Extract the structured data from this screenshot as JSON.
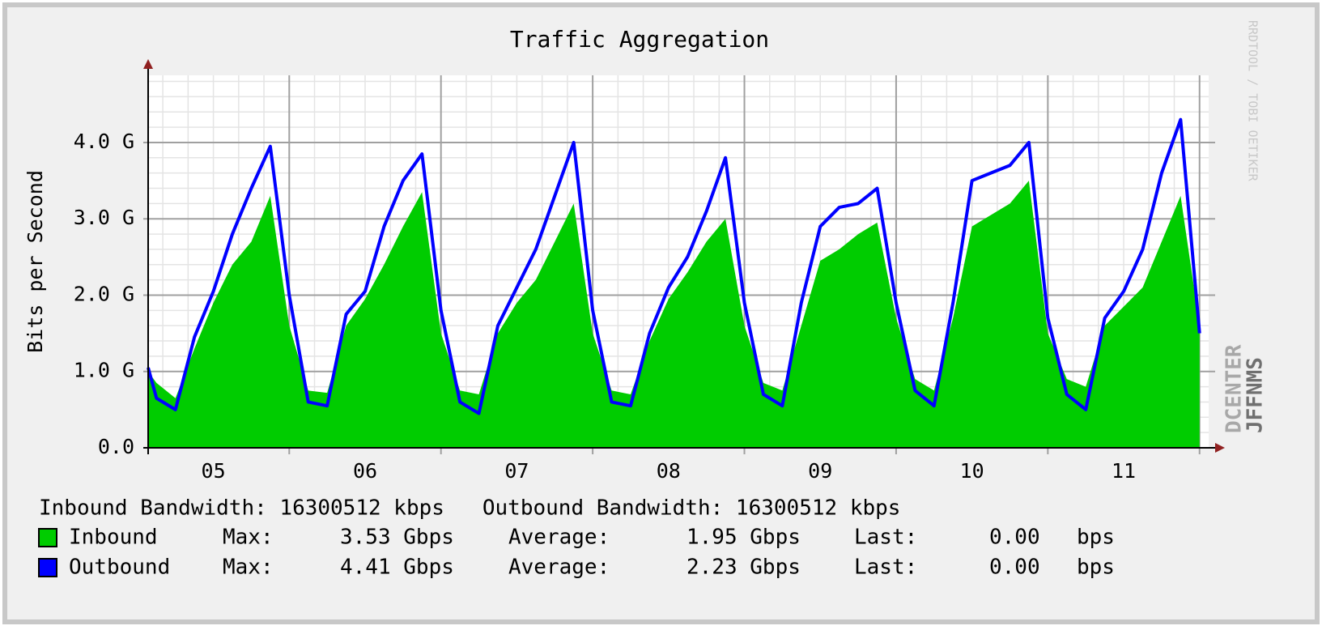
{
  "chart_data": {
    "type": "area",
    "title": "Traffic Aggregation",
    "y_label": "Bits per Second",
    "watermark": "RRDTOOL / TOBI OETIKER",
    "logo": [
      "DCENTER",
      "JFFNMS"
    ],
    "xlim": [
      5.07,
      12.06
    ],
    "xticks": [
      {
        "value": 5.5,
        "label": "05"
      },
      {
        "value": 6.5,
        "label": "06"
      },
      {
        "value": 7.5,
        "label": "07"
      },
      {
        "value": 8.5,
        "label": "08"
      },
      {
        "value": 9.5,
        "label": "09"
      },
      {
        "value": 10.5,
        "label": "10"
      },
      {
        "value": 11.5,
        "label": "11"
      }
    ],
    "xgrid": [
      6,
      7,
      8,
      9,
      10,
      11,
      12
    ],
    "ylim": [
      0,
      4.88
    ],
    "yticks": [
      {
        "value": 0,
        "label": "0.0"
      },
      {
        "value": 1,
        "label": "1.0 G"
      },
      {
        "value": 2,
        "label": "2.0 G"
      },
      {
        "value": 3,
        "label": "3.0 G"
      },
      {
        "value": 4,
        "label": "4.0 G"
      }
    ],
    "grid": true,
    "x": [
      5.07,
      5.125,
      5.25,
      5.375,
      5.5,
      5.625,
      5.75,
      5.875,
      6.0,
      6.125,
      6.25,
      6.375,
      6.5,
      6.625,
      6.75,
      6.875,
      7.0,
      7.125,
      7.25,
      7.375,
      7.5,
      7.625,
      7.75,
      7.875,
      8.0,
      8.125,
      8.25,
      8.375,
      8.5,
      8.625,
      8.75,
      8.875,
      9.0,
      9.125,
      9.25,
      9.375,
      9.5,
      9.625,
      9.75,
      9.875,
      10.0,
      10.125,
      10.25,
      10.375,
      10.5,
      10.625,
      10.75,
      10.875,
      11.0,
      11.125,
      11.25,
      11.375,
      11.5,
      11.625,
      11.75,
      11.875,
      12.0
    ],
    "footer": "Inbound Bandwidth: 16300512 kbps   Outbound Bandwidth: 16300512 kbps",
    "series": [
      {
        "name": "Inbound",
        "color": "#00cc00",
        "style": "area",
        "stats": [
          "Max:",
          "3.53 Gbps",
          "Average:",
          "1.95 Gbps",
          "Last:",
          "0.00",
          "bps"
        ],
        "values": [
          1.0,
          0.85,
          0.65,
          1.3,
          1.9,
          2.4,
          2.7,
          3.3,
          1.6,
          0.75,
          0.72,
          1.6,
          1.95,
          2.4,
          2.9,
          3.35,
          1.5,
          0.75,
          0.7,
          1.5,
          1.9,
          2.2,
          2.7,
          3.2,
          1.5,
          0.75,
          0.7,
          1.4,
          1.95,
          2.3,
          2.7,
          3.0,
          1.6,
          0.85,
          0.75,
          1.6,
          2.45,
          2.6,
          2.8,
          2.95,
          1.7,
          0.9,
          0.75,
          1.7,
          2.9,
          3.05,
          3.2,
          3.5,
          1.5,
          0.9,
          0.8,
          1.6,
          1.85,
          2.1,
          2.7,
          3.3,
          1.6
        ]
      },
      {
        "name": "Outbound",
        "color": "#0000ff",
        "style": "line",
        "stats": [
          "Max:",
          "4.41 Gbps",
          "Average:",
          "2.23 Gbps",
          "Last:",
          "0.00",
          "bps"
        ],
        "values": [
          1.05,
          0.65,
          0.5,
          1.45,
          2.05,
          2.8,
          3.4,
          3.95,
          2.0,
          0.6,
          0.55,
          1.75,
          2.05,
          2.9,
          3.5,
          3.85,
          1.8,
          0.6,
          0.45,
          1.6,
          2.1,
          2.6,
          3.3,
          4.0,
          1.8,
          0.6,
          0.55,
          1.5,
          2.1,
          2.5,
          3.1,
          3.8,
          1.9,
          0.7,
          0.55,
          1.9,
          2.9,
          3.15,
          3.2,
          3.4,
          1.9,
          0.75,
          0.55,
          1.9,
          3.5,
          3.6,
          3.7,
          4.0,
          1.7,
          0.7,
          0.5,
          1.7,
          2.05,
          2.6,
          3.6,
          4.3,
          1.5
        ]
      }
    ]
  }
}
